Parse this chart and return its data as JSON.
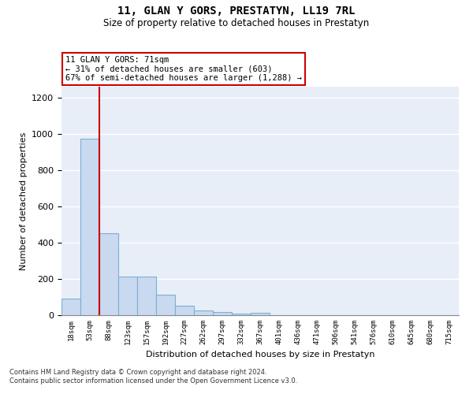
{
  "title": "11, GLAN Y GORS, PRESTATYN, LL19 7RL",
  "subtitle": "Size of property relative to detached houses in Prestatyn",
  "xlabel": "Distribution of detached houses by size in Prestatyn",
  "ylabel": "Number of detached properties",
  "categories": [
    "18sqm",
    "53sqm",
    "88sqm",
    "123sqm",
    "157sqm",
    "192sqm",
    "227sqm",
    "262sqm",
    "297sqm",
    "332sqm",
    "367sqm",
    "401sqm",
    "436sqm",
    "471sqm",
    "506sqm",
    "541sqm",
    "576sqm",
    "610sqm",
    "645sqm",
    "680sqm",
    "715sqm"
  ],
  "values": [
    90,
    975,
    450,
    215,
    215,
    115,
    50,
    25,
    18,
    10,
    12,
    0,
    0,
    0,
    0,
    0,
    0,
    0,
    0,
    0,
    0
  ],
  "bar_color": "#c9d9ef",
  "bar_edge_color": "#7bafd4",
  "vline_x": 1.5,
  "vline_color": "#cc0000",
  "annotation_text": "11 GLAN Y GORS: 71sqm\n← 31% of detached houses are smaller (603)\n67% of semi-detached houses are larger (1,288) →",
  "annotation_box_color": "#ffffff",
  "annotation_box_edge_color": "#cc0000",
  "ylim": [
    0,
    1260
  ],
  "yticks": [
    0,
    200,
    400,
    600,
    800,
    1000,
    1200
  ],
  "footnote": "Contains HM Land Registry data © Crown copyright and database right 2024.\nContains public sector information licensed under the Open Government Licence v3.0.",
  "bg_color": "#e8eef8",
  "fig_bg_color": "#ffffff"
}
